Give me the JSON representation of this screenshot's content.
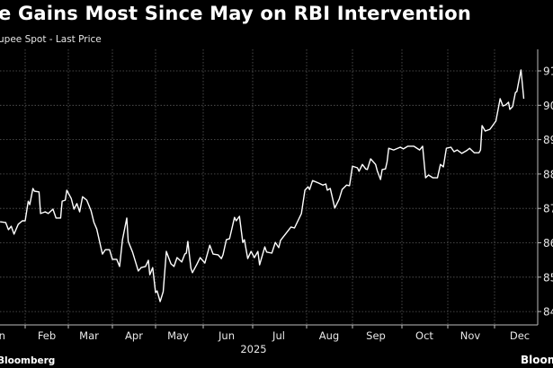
{
  "header": {
    "title": "e Gains Most Since May on RBI Intervention",
    "subtitle": "upee Spot - Last Price"
  },
  "footer": {
    "source": "Bloomberg",
    "logo": "Bloom"
  },
  "colors": {
    "background": "#000000",
    "line": "#ffffff",
    "grid": "#5a5a5a",
    "axis": "#bdbdbd"
  },
  "chart_data": {
    "type": "line",
    "title": "",
    "xlabel": "2025",
    "ylabel": "",
    "y_axis_side": "right",
    "ylim": [
      84,
      91
    ],
    "y_ticks": [
      "84",
      "85",
      "86",
      "87",
      "88",
      "89",
      "90",
      "91"
    ],
    "x_ticks": [
      "Jan",
      "Feb",
      "Mar",
      "Apr",
      "May",
      "Jun",
      "Jul",
      "Aug",
      "Sep",
      "Oct",
      "Nov",
      "Dec"
    ],
    "grid": true,
    "series": [
      {
        "x": [
          "2025-01-14",
          "2025-01-18",
          "2025-01-20",
          "2025-01-22",
          "2025-01-24",
          "2025-01-27",
          "2025-01-30",
          "2025-02-01",
          "2025-02-03",
          "2025-02-04",
          "2025-02-06",
          "2025-02-07",
          "2025-02-10",
          "2025-02-11",
          "2025-02-14",
          "2025-02-16",
          "2025-02-19",
          "2025-02-21",
          "2025-02-24",
          "2025-02-25",
          "2025-02-27",
          "2025-02-28",
          "2025-03-03",
          "2025-03-05",
          "2025-03-07",
          "2025-03-09",
          "2025-03-11",
          "2025-03-14",
          "2025-03-17",
          "2025-03-19",
          "2025-03-21",
          "2025-03-25",
          "2025-03-27",
          "2025-03-30",
          "2025-04-01",
          "2025-04-04",
          "2025-04-06",
          "2025-04-08",
          "2025-04-11",
          "2025-04-12",
          "2025-04-15",
          "2025-04-19",
          "2025-04-21",
          "2025-04-24",
          "2025-04-26",
          "2025-04-27",
          "2025-04-29",
          "2025-05-01",
          "2025-05-02",
          "2025-05-04",
          "2025-05-06",
          "2025-05-08",
          "2025-05-11",
          "2025-05-13",
          "2025-05-15",
          "2025-05-18",
          "2025-05-20",
          "2025-05-21",
          "2025-05-22",
          "2025-05-24",
          "2025-05-25",
          "2025-05-28",
          "2025-05-30",
          "2025-06-02",
          "2025-06-05",
          "2025-06-07",
          "2025-06-10",
          "2025-06-12",
          "2025-06-13",
          "2025-06-15",
          "2025-06-17",
          "2025-06-20",
          "2025-06-21",
          "2025-06-23",
          "2025-06-25",
          "2025-06-26",
          "2025-06-28",
          "2025-06-30",
          "2025-07-02",
          "2025-07-04",
          "2025-07-05",
          "2025-07-08",
          "2025-07-09",
          "2025-07-12",
          "2025-07-14",
          "2025-07-16",
          "2025-07-17",
          "2025-07-21",
          "2025-07-23",
          "2025-07-25",
          "2025-07-29",
          "2025-07-31",
          "2025-08-02",
          "2025-08-03",
          "2025-08-05",
          "2025-08-09",
          "2025-08-12",
          "2025-08-14",
          "2025-08-15",
          "2025-08-17",
          "2025-08-20",
          "2025-08-23",
          "2025-08-25",
          "2025-08-28",
          "2025-08-30",
          "2025-09-01",
          "2025-09-04",
          "2025-09-05",
          "2025-09-07",
          "2025-09-09",
          "2025-09-10",
          "2025-09-12",
          "2025-09-15",
          "2025-09-16",
          "2025-09-18",
          "2025-09-19",
          "2025-09-21",
          "2025-09-22",
          "2025-09-23",
          "2025-09-26",
          "2025-09-30",
          "2025-10-02",
          "2025-10-05",
          "2025-10-09",
          "2025-10-13",
          "2025-10-15",
          "2025-10-17",
          "2025-10-19",
          "2025-10-22",
          "2025-10-25",
          "2025-10-27",
          "2025-10-29",
          "2025-10-31",
          "2025-11-03",
          "2025-11-05",
          "2025-11-07",
          "2025-11-10",
          "2025-11-13",
          "2025-11-15",
          "2025-11-18",
          "2025-11-21",
          "2025-11-22",
          "2025-11-23",
          "2025-11-25",
          "2025-11-28",
          "2025-12-02",
          "2025-12-05",
          "2025-12-07",
          "2025-12-09",
          "2025-12-11",
          "2025-12-12",
          "2025-12-14",
          "2025-12-16",
          "2025-12-17",
          "2025-12-20",
          "2025-12-22"
        ],
        "y": [
          86.61,
          86.59,
          86.38,
          86.48,
          86.25,
          86.54,
          86.64,
          86.64,
          87.21,
          87.11,
          87.58,
          87.5,
          87.48,
          86.85,
          86.9,
          86.85,
          86.98,
          86.72,
          86.72,
          87.21,
          87.24,
          87.53,
          87.29,
          86.98,
          87.14,
          86.9,
          87.34,
          87.24,
          86.93,
          86.59,
          86.4,
          85.67,
          85.8,
          85.8,
          85.52,
          85.52,
          85.31,
          86.09,
          86.72,
          86.04,
          85.73,
          85.18,
          85.28,
          85.31,
          85.49,
          85.07,
          85.28,
          84.55,
          84.6,
          84.29,
          84.58,
          85.75,
          85.39,
          85.31,
          85.57,
          85.44,
          85.67,
          85.7,
          86.04,
          85.26,
          85.13,
          85.39,
          85.57,
          85.41,
          85.93,
          85.67,
          85.65,
          85.54,
          85.65,
          86.09,
          86.12,
          86.74,
          86.64,
          86.77,
          86.01,
          86.09,
          85.54,
          85.75,
          85.57,
          85.75,
          85.36,
          85.88,
          85.73,
          85.7,
          86.01,
          85.86,
          86.07,
          86.33,
          86.46,
          86.43,
          86.85,
          87.53,
          87.63,
          87.55,
          87.81,
          87.74,
          87.68,
          87.71,
          87.53,
          87.58,
          87.01,
          87.27,
          87.55,
          87.68,
          87.66,
          88.23,
          88.18,
          88.08,
          88.28,
          88.15,
          88.13,
          88.44,
          88.28,
          88.1,
          87.84,
          88.13,
          88.15,
          88.36,
          88.75,
          88.7,
          88.78,
          88.73,
          88.81,
          88.81,
          88.7,
          88.81,
          87.89,
          87.97,
          87.89,
          87.89,
          88.28,
          88.21,
          88.75,
          88.78,
          88.65,
          88.7,
          88.6,
          88.68,
          88.75,
          88.62,
          88.62,
          88.7,
          89.41,
          89.25,
          89.3,
          89.54,
          90.19,
          89.98,
          90.01,
          90.09,
          89.88,
          89.96,
          90.37,
          90.4,
          91.03,
          90.19
        ]
      }
    ]
  }
}
